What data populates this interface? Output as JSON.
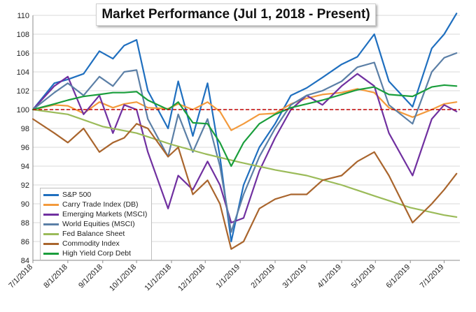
{
  "chart_data": {
    "type": "line",
    "title": "Market Performance (Jul 1, 2018 - Present)",
    "xlabel": "",
    "ylabel": "",
    "ylim": [
      84,
      110
    ],
    "y_ticks": [
      84,
      86,
      88,
      90,
      92,
      94,
      96,
      98,
      100,
      102,
      104,
      106,
      108,
      110
    ],
    "x_tick_labels": [
      "7/1/2018",
      "8/1/2018",
      "9/1/2018",
      "10/1/2018",
      "11/1/2018",
      "12/1/2018",
      "1/1/2019",
      "2/1/2019",
      "3/1/2019",
      "4/1/2019",
      "5/1/2019",
      "6/1/2019",
      "7/1/2019"
    ],
    "x_range": [
      "2018-07-01",
      "2019-07-15"
    ],
    "grid": "horizontal",
    "legend_position": "bottom-left",
    "reference_line": {
      "value": 100,
      "style": "dashed",
      "color": "#c00000"
    },
    "series": [
      {
        "name": "S&P 500",
        "color": "#1f6fbf",
        "points": [
          [
            "2018-07-01",
            100.0
          ],
          [
            "2018-07-20",
            102.8
          ],
          [
            "2018-08-01",
            103.2
          ],
          [
            "2018-08-15",
            103.8
          ],
          [
            "2018-08-29",
            106.2
          ],
          [
            "2018-09-10",
            105.4
          ],
          [
            "2018-09-20",
            106.8
          ],
          [
            "2018-10-01",
            107.4
          ],
          [
            "2018-10-11",
            102.0
          ],
          [
            "2018-10-29",
            98.0
          ],
          [
            "2018-11-07",
            103.0
          ],
          [
            "2018-11-20",
            97.2
          ],
          [
            "2018-12-03",
            102.8
          ],
          [
            "2018-12-14",
            95.0
          ],
          [
            "2018-12-24",
            86.0
          ],
          [
            "2019-01-04",
            92.0
          ],
          [
            "2019-01-18",
            96.0
          ],
          [
            "2019-02-01",
            98.5
          ],
          [
            "2019-02-15",
            101.5
          ],
          [
            "2019-03-01",
            102.3
          ],
          [
            "2019-03-15",
            103.4
          ],
          [
            "2019-04-01",
            104.8
          ],
          [
            "2019-04-15",
            105.6
          ],
          [
            "2019-04-30",
            108.0
          ],
          [
            "2019-05-13",
            103.0
          ],
          [
            "2019-06-03",
            100.3
          ],
          [
            "2019-06-20",
            106.5
          ],
          [
            "2019-07-01",
            108.0
          ],
          [
            "2019-07-12",
            110.2
          ]
        ]
      },
      {
        "name": "Carry Trade Index (DB)",
        "color": "#f39a3c",
        "points": [
          [
            "2018-07-01",
            100.0
          ],
          [
            "2018-07-20",
            100.5
          ],
          [
            "2018-08-01",
            100.4
          ],
          [
            "2018-08-15",
            99.6
          ],
          [
            "2018-08-29",
            100.8
          ],
          [
            "2018-09-10",
            100.2
          ],
          [
            "2018-09-20",
            100.6
          ],
          [
            "2018-10-01",
            100.8
          ],
          [
            "2018-10-11",
            100.2
          ],
          [
            "2018-10-29",
            100.1
          ],
          [
            "2018-11-07",
            100.6
          ],
          [
            "2018-11-20",
            100.0
          ],
          [
            "2018-12-03",
            100.8
          ],
          [
            "2018-12-14",
            99.8
          ],
          [
            "2018-12-24",
            97.8
          ],
          [
            "2019-01-04",
            98.5
          ],
          [
            "2019-01-18",
            99.5
          ],
          [
            "2019-02-01",
            99.6
          ],
          [
            "2019-02-15",
            100.6
          ],
          [
            "2019-03-01",
            101.2
          ],
          [
            "2019-03-15",
            101.6
          ],
          [
            "2019-04-01",
            101.8
          ],
          [
            "2019-04-15",
            102.2
          ],
          [
            "2019-04-30",
            101.8
          ],
          [
            "2019-05-13",
            100.2
          ],
          [
            "2019-06-03",
            99.2
          ],
          [
            "2019-06-20",
            100.0
          ],
          [
            "2019-07-01",
            100.6
          ],
          [
            "2019-07-12",
            100.8
          ]
        ]
      },
      {
        "name": "Emerging Markets (MSCI)",
        "color": "#7030a0",
        "points": [
          [
            "2018-07-01",
            100.0
          ],
          [
            "2018-07-20",
            102.5
          ],
          [
            "2018-08-01",
            103.5
          ],
          [
            "2018-08-15",
            99.5
          ],
          [
            "2018-08-29",
            101.5
          ],
          [
            "2018-09-10",
            97.5
          ],
          [
            "2018-09-20",
            100.5
          ],
          [
            "2018-10-01",
            100.0
          ],
          [
            "2018-10-11",
            95.5
          ],
          [
            "2018-10-29",
            89.5
          ],
          [
            "2018-11-07",
            93.0
          ],
          [
            "2018-11-20",
            91.5
          ],
          [
            "2018-12-03",
            94.5
          ],
          [
            "2018-12-14",
            92.0
          ],
          [
            "2018-12-24",
            88.0
          ],
          [
            "2019-01-04",
            88.5
          ],
          [
            "2019-01-18",
            93.5
          ],
          [
            "2019-02-01",
            97.0
          ],
          [
            "2019-02-15",
            100.0
          ],
          [
            "2019-03-01",
            101.5
          ],
          [
            "2019-03-15",
            100.5
          ],
          [
            "2019-04-01",
            102.5
          ],
          [
            "2019-04-15",
            103.8
          ],
          [
            "2019-04-30",
            102.5
          ],
          [
            "2019-05-13",
            97.5
          ],
          [
            "2019-06-03",
            93.0
          ],
          [
            "2019-06-20",
            99.0
          ],
          [
            "2019-07-01",
            100.5
          ],
          [
            "2019-07-12",
            99.8
          ]
        ]
      },
      {
        "name": "World Equities (MSCI)",
        "color": "#5b7fa6",
        "points": [
          [
            "2018-07-01",
            100.0
          ],
          [
            "2018-07-20",
            101.8
          ],
          [
            "2018-08-01",
            102.8
          ],
          [
            "2018-08-15",
            101.5
          ],
          [
            "2018-08-29",
            103.5
          ],
          [
            "2018-09-10",
            102.5
          ],
          [
            "2018-09-20",
            104.0
          ],
          [
            "2018-10-01",
            104.2
          ],
          [
            "2018-10-11",
            99.0
          ],
          [
            "2018-10-29",
            95.0
          ],
          [
            "2018-11-07",
            99.5
          ],
          [
            "2018-11-20",
            95.5
          ],
          [
            "2018-12-03",
            99.0
          ],
          [
            "2018-12-14",
            94.0
          ],
          [
            "2018-12-24",
            87.0
          ],
          [
            "2019-01-04",
            91.0
          ],
          [
            "2019-01-18",
            95.0
          ],
          [
            "2019-02-01",
            98.0
          ],
          [
            "2019-02-15",
            100.5
          ],
          [
            "2019-03-01",
            101.5
          ],
          [
            "2019-03-15",
            102.0
          ],
          [
            "2019-04-01",
            103.0
          ],
          [
            "2019-04-15",
            104.5
          ],
          [
            "2019-04-30",
            105.0
          ],
          [
            "2019-05-13",
            100.5
          ],
          [
            "2019-06-03",
            98.5
          ],
          [
            "2019-06-20",
            104.0
          ],
          [
            "2019-07-01",
            105.5
          ],
          [
            "2019-07-12",
            106.0
          ]
        ]
      },
      {
        "name": "Fed Balance Sheet",
        "color": "#9bbb59",
        "points": [
          [
            "2018-07-01",
            100.0
          ],
          [
            "2018-08-01",
            99.5
          ],
          [
            "2018-09-01",
            98.2
          ],
          [
            "2018-10-01",
            97.5
          ],
          [
            "2018-11-01",
            96.3
          ],
          [
            "2018-12-01",
            95.3
          ],
          [
            "2019-01-01",
            94.4
          ],
          [
            "2019-02-01",
            93.6
          ],
          [
            "2019-03-01",
            93.0
          ],
          [
            "2019-04-01",
            92.0
          ],
          [
            "2019-05-01",
            90.8
          ],
          [
            "2019-06-01",
            89.6
          ],
          [
            "2019-07-01",
            88.8
          ],
          [
            "2019-07-12",
            88.6
          ]
        ]
      },
      {
        "name": "Commodity Index",
        "color": "#a9652d",
        "points": [
          [
            "2018-07-01",
            99.0
          ],
          [
            "2018-07-20",
            97.5
          ],
          [
            "2018-08-01",
            96.5
          ],
          [
            "2018-08-15",
            98.0
          ],
          [
            "2018-08-29",
            95.5
          ],
          [
            "2018-09-10",
            96.5
          ],
          [
            "2018-09-20",
            97.0
          ],
          [
            "2018-10-01",
            98.5
          ],
          [
            "2018-10-11",
            98.0
          ],
          [
            "2018-10-29",
            95.0
          ],
          [
            "2018-11-07",
            96.0
          ],
          [
            "2018-11-20",
            91.0
          ],
          [
            "2018-12-03",
            92.5
          ],
          [
            "2018-12-14",
            90.0
          ],
          [
            "2018-12-24",
            85.2
          ],
          [
            "2019-01-04",
            86.0
          ],
          [
            "2019-01-18",
            89.5
          ],
          [
            "2019-02-01",
            90.5
          ],
          [
            "2019-02-15",
            91.0
          ],
          [
            "2019-03-01",
            91.0
          ],
          [
            "2019-03-15",
            92.5
          ],
          [
            "2019-04-01",
            93.0
          ],
          [
            "2019-04-15",
            94.5
          ],
          [
            "2019-04-30",
            95.5
          ],
          [
            "2019-05-13",
            93.0
          ],
          [
            "2019-06-03",
            88.0
          ],
          [
            "2019-06-20",
            90.0
          ],
          [
            "2019-07-01",
            91.5
          ],
          [
            "2019-07-12",
            93.2
          ]
        ]
      },
      {
        "name": "High Yield Corp Debt",
        "color": "#1a9e3c",
        "points": [
          [
            "2018-07-01",
            100.0
          ],
          [
            "2018-07-20",
            100.6
          ],
          [
            "2018-08-01",
            101.0
          ],
          [
            "2018-08-15",
            101.4
          ],
          [
            "2018-08-29",
            101.6
          ],
          [
            "2018-09-10",
            101.8
          ],
          [
            "2018-09-20",
            101.8
          ],
          [
            "2018-10-01",
            101.9
          ],
          [
            "2018-10-11",
            101.0
          ],
          [
            "2018-10-29",
            100.0
          ],
          [
            "2018-11-07",
            100.8
          ],
          [
            "2018-11-20",
            98.6
          ],
          [
            "2018-12-03",
            98.5
          ],
          [
            "2018-12-14",
            96.5
          ],
          [
            "2018-12-24",
            94.0
          ],
          [
            "2019-01-04",
            96.5
          ],
          [
            "2019-01-18",
            98.5
          ],
          [
            "2019-02-01",
            99.5
          ],
          [
            "2019-02-15",
            100.2
          ],
          [
            "2019-03-01",
            100.6
          ],
          [
            "2019-03-15",
            101.0
          ],
          [
            "2019-04-01",
            101.6
          ],
          [
            "2019-04-15",
            102.1
          ],
          [
            "2019-04-30",
            102.4
          ],
          [
            "2019-05-13",
            101.6
          ],
          [
            "2019-06-03",
            101.4
          ],
          [
            "2019-06-20",
            102.4
          ],
          [
            "2019-07-01",
            102.6
          ],
          [
            "2019-07-12",
            102.5
          ]
        ]
      }
    ]
  }
}
